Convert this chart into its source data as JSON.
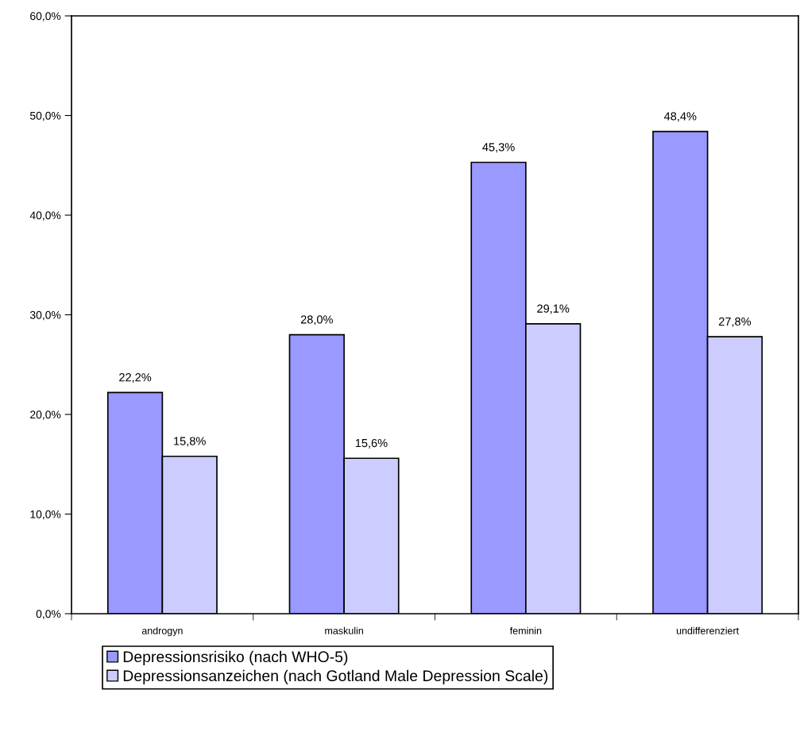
{
  "chart_data": {
    "type": "bar",
    "categories": [
      "androgyn",
      "maskulin",
      "feminin",
      "undifferenziert"
    ],
    "series": [
      {
        "name": "Depressionsrisiko (nach WHO-5)",
        "color": "#9999ff",
        "values": [
          22.2,
          28.0,
          45.3,
          48.4
        ],
        "value_labels": [
          "22,2%",
          "28,0%",
          "45,3%",
          "48,4%"
        ]
      },
      {
        "name": "Depressionsanzeichen (nach Gotland Male Depression Scale)",
        "color": "#ccccff",
        "values": [
          15.8,
          15.6,
          29.1,
          27.8
        ],
        "value_labels": [
          "15,8%",
          "15,6%",
          "29,1%",
          "27,8%"
        ]
      }
    ],
    "ylim": [
      0,
      60
    ],
    "yticks": [
      {
        "value": 0,
        "label": "0,0%"
      },
      {
        "value": 10,
        "label": "10,0%"
      },
      {
        "value": 20,
        "label": "20,0%"
      },
      {
        "value": 30,
        "label": "30,0%"
      },
      {
        "value": 40,
        "label": "40,0%"
      },
      {
        "value": 50,
        "label": "50,0%"
      },
      {
        "value": 60,
        "label": "60,0%"
      }
    ],
    "grid": false,
    "legend": "bottom"
  }
}
